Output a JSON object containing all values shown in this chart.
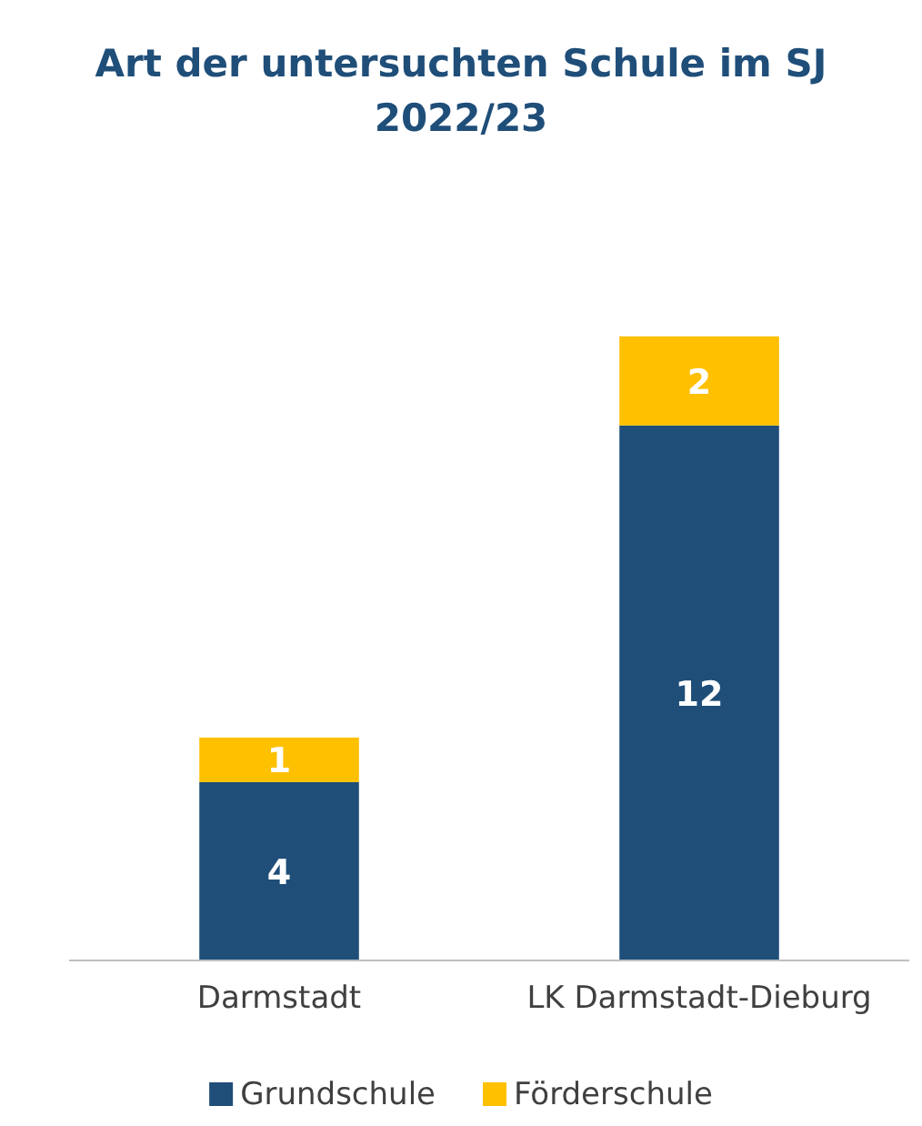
{
  "chart_data": {
    "type": "bar",
    "title": "Art der untersuchten Schule im SJ 2022/23",
    "categories": [
      "Darmstadt",
      "LK Darmstadt-Dieburg"
    ],
    "stacked": true,
    "data_labels": true,
    "legend": "bottom",
    "series": [
      {
        "name": "Grundschule",
        "color": "#1f4e79",
        "values": [
          4,
          12
        ]
      },
      {
        "name": "Förderschule",
        "color": "#ffc000",
        "values": [
          1,
          2
        ]
      }
    ]
  }
}
